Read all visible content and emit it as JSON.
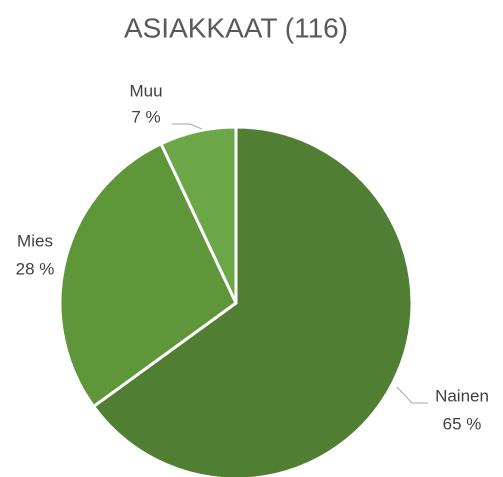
{
  "chart_data": {
    "type": "pie",
    "title": "ASIAKKAAT (116)",
    "categories": [
      "Nainen",
      "Mies",
      "Muu"
    ],
    "values": [
      65,
      28,
      7
    ],
    "value_labels": [
      "65 %",
      "28 %",
      "7 %"
    ],
    "colors": [
      "#507e32",
      "#5e9639",
      "#6ba746"
    ]
  }
}
